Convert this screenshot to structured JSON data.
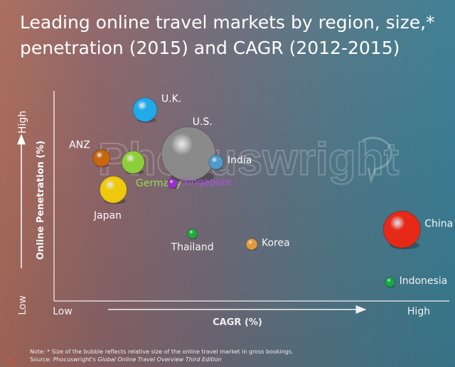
{
  "title_line1": "Leading online travel markets by region, size,*",
  "title_line2": "penetration (2015) and CAGR (2012-2015)",
  "watermark_text": "Phocuswright",
  "note": "Note: * Size of the bubble reflects relative size of the online travel market in gross bookings.",
  "source_prefix": "Source: Phocuswright's ",
  "source_title": "Global Online Travel Overview Third Edition",
  "chart_data": {
    "type": "scatter",
    "title": "Leading online travel markets by region, size,* penetration (2015) and CAGR (2012-2015)",
    "xlabel": "CAGR (%)",
    "ylabel": "Online Penetration (%)",
    "x_axis": {
      "low": "Low",
      "high": "High"
    },
    "y_axis": {
      "low": "Low",
      "high": "High"
    },
    "xlim": [
      0,
      100
    ],
    "ylim": [
      0,
      100
    ],
    "grid": false,
    "legend": "none",
    "points": [
      {
        "label": "U.K.",
        "x": 23,
        "y": 91,
        "size": 17,
        "color": "#1fa8ea",
        "label_color": "#ffffff",
        "label_pos": "right"
      },
      {
        "label": "U.S.",
        "x": 34,
        "y": 70,
        "size": 38,
        "color": "#8a8a8a",
        "label_color": "#ffffff",
        "label_pos": "right"
      },
      {
        "label": "ANZ",
        "x": 12,
        "y": 68,
        "size": 12,
        "color": "#c8660f",
        "label_color": "#ffffff",
        "label_pos": "left"
      },
      {
        "label": "Germany",
        "x": 20,
        "y": 66,
        "size": 16,
        "color": "#8fcf3a",
        "label_color": "#9ede55",
        "label_pos": "below"
      },
      {
        "label": "India",
        "x": 41,
        "y": 66,
        "size": 10,
        "color": "#4e9ccc",
        "label_color": "#ffffff",
        "label_pos": "right"
      },
      {
        "label": "Singapore",
        "x": 30,
        "y": 56,
        "size": 7,
        "color": "#9a30d0",
        "label_color": "#b050e0",
        "label_pos": "right"
      },
      {
        "label": "Japan",
        "x": 15,
        "y": 53,
        "size": 19,
        "color": "#f2cc0c",
        "label_color": "#ffffff",
        "label_pos": "below"
      },
      {
        "label": "Thailand",
        "x": 35,
        "y": 32,
        "size": 7,
        "color": "#1fb040",
        "label_color": "#ffffff",
        "label_pos": "below"
      },
      {
        "label": "Korea",
        "x": 50,
        "y": 27,
        "size": 8,
        "color": "#e8a040",
        "label_color": "#ffffff",
        "label_pos": "right"
      },
      {
        "label": "China",
        "x": 88,
        "y": 34,
        "size": 26,
        "color": "#ee2a18",
        "label_color": "#ffffff",
        "label_pos": "right"
      },
      {
        "label": "Indonesia",
        "x": 85,
        "y": 9,
        "size": 7,
        "color": "#1ab048",
        "label_color": "#ffffff",
        "label_pos": "right"
      }
    ]
  }
}
